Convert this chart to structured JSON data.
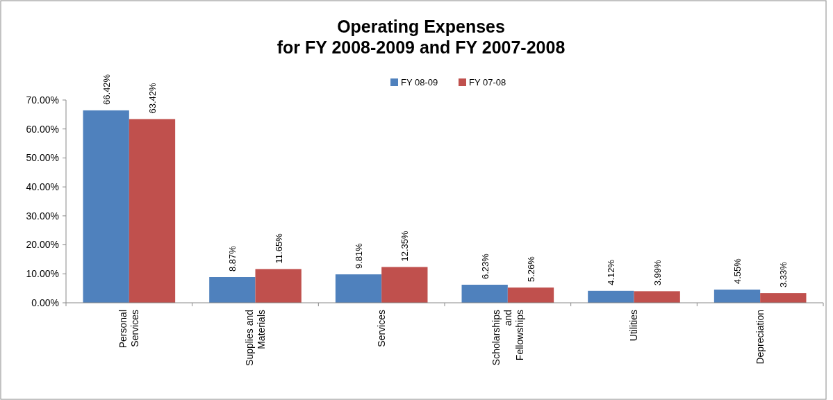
{
  "chart_data": {
    "type": "bar",
    "title": "Operating Expenses\nfor FY 2008-2009 and FY 2007-2008",
    "categories": [
      "Personal Services",
      "Supplies and Materials",
      "Services",
      "Scholarships and Fellowships",
      "Utilities",
      "Depreciation"
    ],
    "series": [
      {
        "name": "FY 08-09",
        "color": "#4f81bd",
        "values": [
          66.42,
          8.87,
          9.81,
          6.23,
          4.12,
          4.55
        ],
        "value_labels": [
          "66.42%",
          "8.87%",
          "9.81%",
          "6.23%",
          "4.12%",
          "4.55%"
        ]
      },
      {
        "name": "FY 07-08",
        "color": "#c0504d",
        "values": [
          63.42,
          11.65,
          12.35,
          5.26,
          3.99,
          3.33
        ],
        "value_labels": [
          "63.42%",
          "11.65%",
          "12.35%",
          "5.26%",
          "3.99%",
          "3.33%"
        ]
      }
    ],
    "ylim": [
      0,
      70
    ],
    "yticks": [
      {
        "value": 0,
        "label": "0.00%"
      },
      {
        "value": 10,
        "label": "10.00%"
      },
      {
        "value": 20,
        "label": "20.00%"
      },
      {
        "value": 30,
        "label": "30.00%"
      },
      {
        "value": 40,
        "label": "40.00%"
      },
      {
        "value": 50,
        "label": "50.00%"
      },
      {
        "value": 60,
        "label": "60.00%"
      },
      {
        "value": 70,
        "label": "70.00%"
      }
    ],
    "grid": false,
    "legend": "top"
  }
}
